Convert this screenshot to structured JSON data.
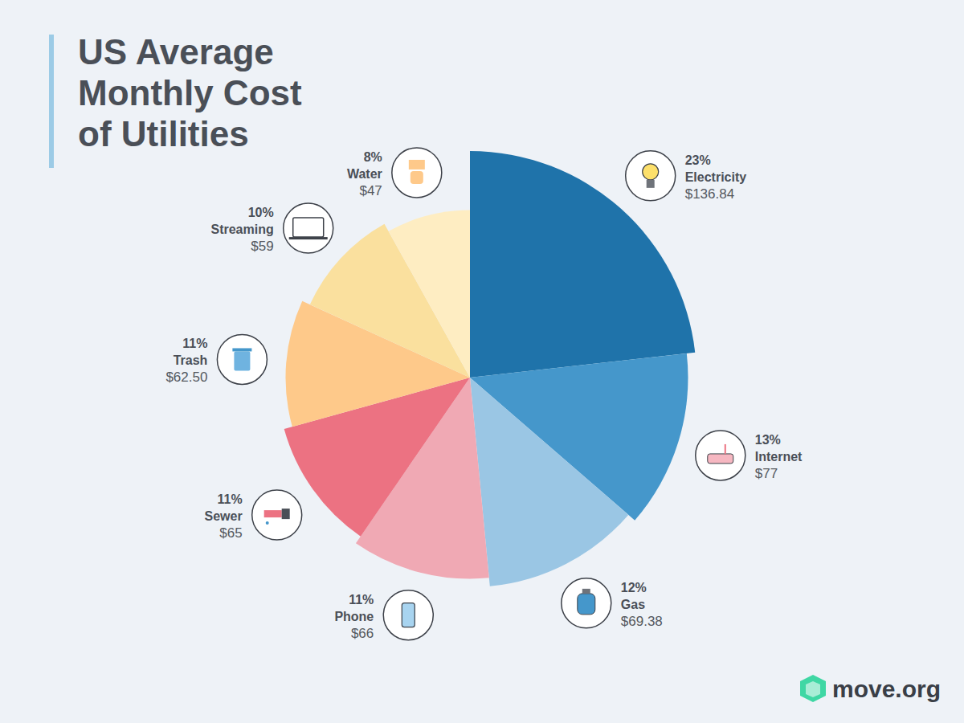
{
  "chart_data": {
    "type": "pie",
    "title": "US Average Monthly Cost of Utilities",
    "categories": [
      "Electricity",
      "Internet",
      "Gas",
      "Phone",
      "Sewer",
      "Trash",
      "Streaming",
      "Water"
    ],
    "values": [
      23,
      13,
      12,
      11,
      11,
      11,
      10,
      8
    ],
    "value_labels": [
      "23%",
      "13%",
      "12%",
      "11%",
      "11%",
      "11%",
      "10%",
      "8%"
    ],
    "cost_labels": [
      "$136.84",
      "$77",
      "$69.38",
      "$66",
      "$65",
      "$62.50",
      "$59",
      "$47"
    ],
    "colors": [
      "#1f73aa",
      "#4597cb",
      "#9ac6e4",
      "#f0a9b4",
      "#ec7282",
      "#fec98a",
      "#fae09e",
      "#feedc2"
    ],
    "data_labels": true,
    "source": "move.org"
  }
}
